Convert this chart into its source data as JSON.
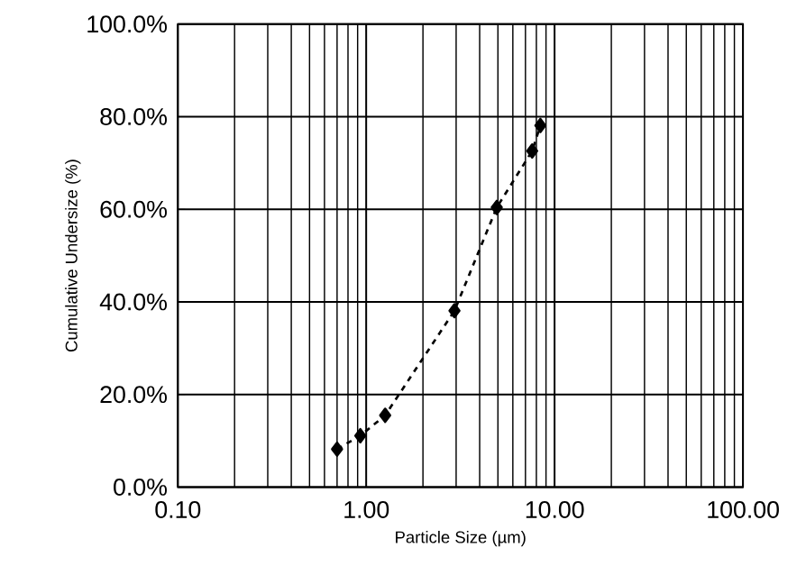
{
  "chart_data": {
    "type": "line",
    "xlabel": "Particle Size (µm)",
    "ylabel": "Cumulative Undersize (%)",
    "log": "x",
    "grid": true,
    "marker": "diamond",
    "line_style": "dashed",
    "xlim": [
      0.1,
      100
    ],
    "xticks": [
      {
        "value": 0.1,
        "label": "0.10"
      },
      {
        "value": 1,
        "label": "1.00"
      },
      {
        "value": 10,
        "label": "10.00"
      },
      {
        "value": 100,
        "label": "100.00"
      }
    ],
    "ylim": [
      0,
      100
    ],
    "yticks": [
      {
        "value": 0,
        "label": "0.0%"
      },
      {
        "value": 20,
        "label": "20.0%"
      },
      {
        "value": 40,
        "label": "40.0%"
      },
      {
        "value": 60,
        "label": "60.0%"
      },
      {
        "value": 80,
        "label": "80.0%"
      },
      {
        "value": 100,
        "label": "100.0%"
      }
    ],
    "series": [
      {
        "color": "#000000",
        "x": [
          0.7,
          0.93,
          1.26,
          2.94,
          4.93,
          7.6,
          8.4
        ],
        "values": [
          8.2,
          11.1,
          15.5,
          38.1,
          60.4,
          72.6,
          78.1
        ]
      }
    ]
  }
}
